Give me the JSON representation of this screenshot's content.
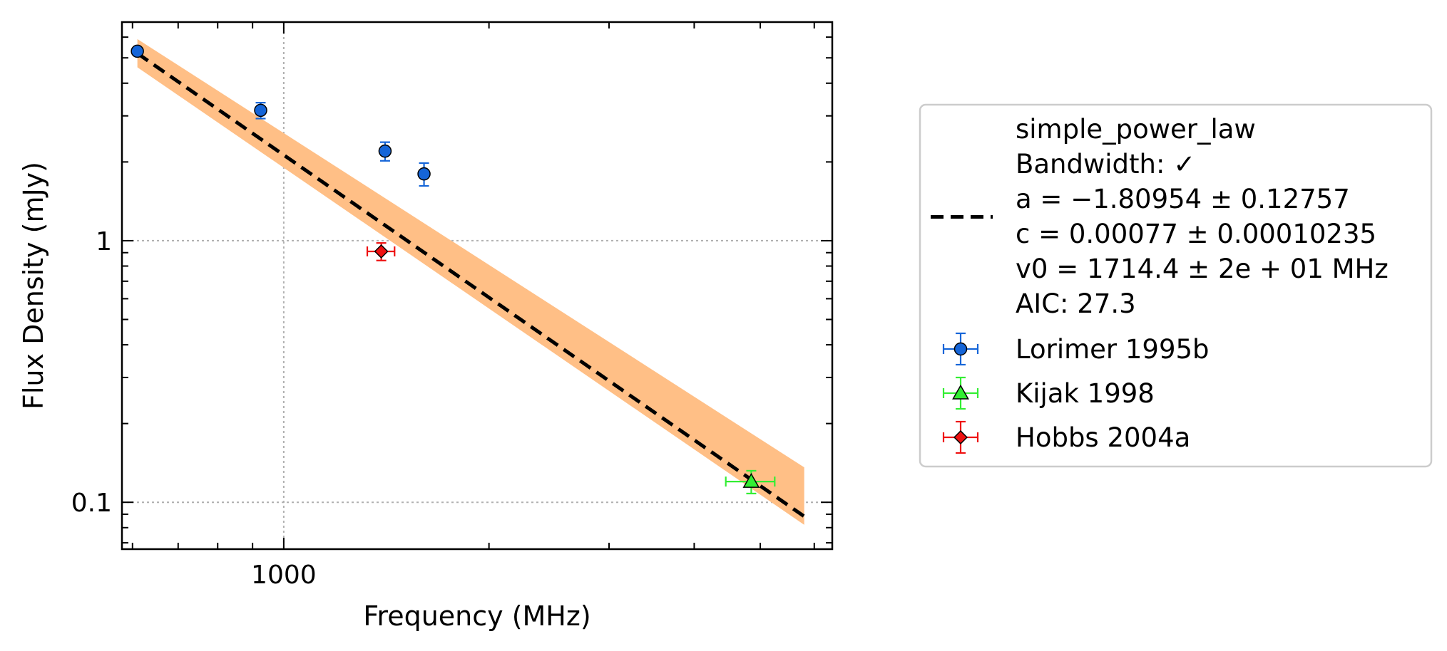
{
  "chart_data": {
    "type": "scatter",
    "title": "",
    "xlabel": "Frequency (MHz)",
    "ylabel": "Flux Density (mJy)",
    "xscale": "log",
    "yscale": "log",
    "xlim": [
      579,
      6376
    ],
    "ylim": [
      0.0662,
      6.85
    ],
    "x_ticks": [
      {
        "value": 1000,
        "label": "1000"
      }
    ],
    "y_ticks": [
      {
        "value": 0.1,
        "label": "0.1"
      },
      {
        "value": 1,
        "label": "1"
      }
    ],
    "grid": true,
    "legend_position": "outside-right",
    "fit": {
      "name": "simple_power_law",
      "legend_lines": [
        "simple_power_law",
        "Bandwidth: ✓",
        "a = −1.80954 ± 0.12757",
        "c = 0.00077 ± 0.00010235",
        "v0 = 1714.4 ± 2e + 01 MHz",
        "AIC: 27.3"
      ],
      "a": -1.80954,
      "v0": 1714.4,
      "x_range": [
        610,
        5800
      ],
      "y_at_start": 5.2,
      "band_lower_start": 4.6,
      "band_upper_start": 5.9,
      "band_lower_end": 0.082,
      "band_upper_end": 0.136,
      "line_color": "#000000",
      "band_color": "#ffbf86"
    },
    "series": [
      {
        "name": "Lorimer 1995b",
        "marker": "circle",
        "color": "#1565d8",
        "errorbar_color": "#1565d8",
        "points": [
          {
            "x": 610,
            "y": 5.3,
            "yerr": 0.12,
            "xerr": 0
          },
          {
            "x": 925,
            "y": 3.15,
            "yerr": 0.22,
            "xerr": 10
          },
          {
            "x": 1408,
            "y": 2.2,
            "yerr": 0.18,
            "xerr": 10
          },
          {
            "x": 1606,
            "y": 1.8,
            "yerr": 0.18,
            "xerr": 14
          }
        ]
      },
      {
        "name": "Kijak 1998",
        "marker": "triangle",
        "color": "#33ee33",
        "errorbar_color": "#33ee33",
        "points": [
          {
            "x": 4850,
            "y": 0.12,
            "yerr": 0.012,
            "xerr": 400
          }
        ]
      },
      {
        "name": "Hobbs 2004a",
        "marker": "diamond",
        "color": "#ee1111",
        "errorbar_color": "#ee1111",
        "points": [
          {
            "x": 1390,
            "y": 0.91,
            "yerr": 0.07,
            "xerr": 64
          }
        ]
      }
    ]
  }
}
